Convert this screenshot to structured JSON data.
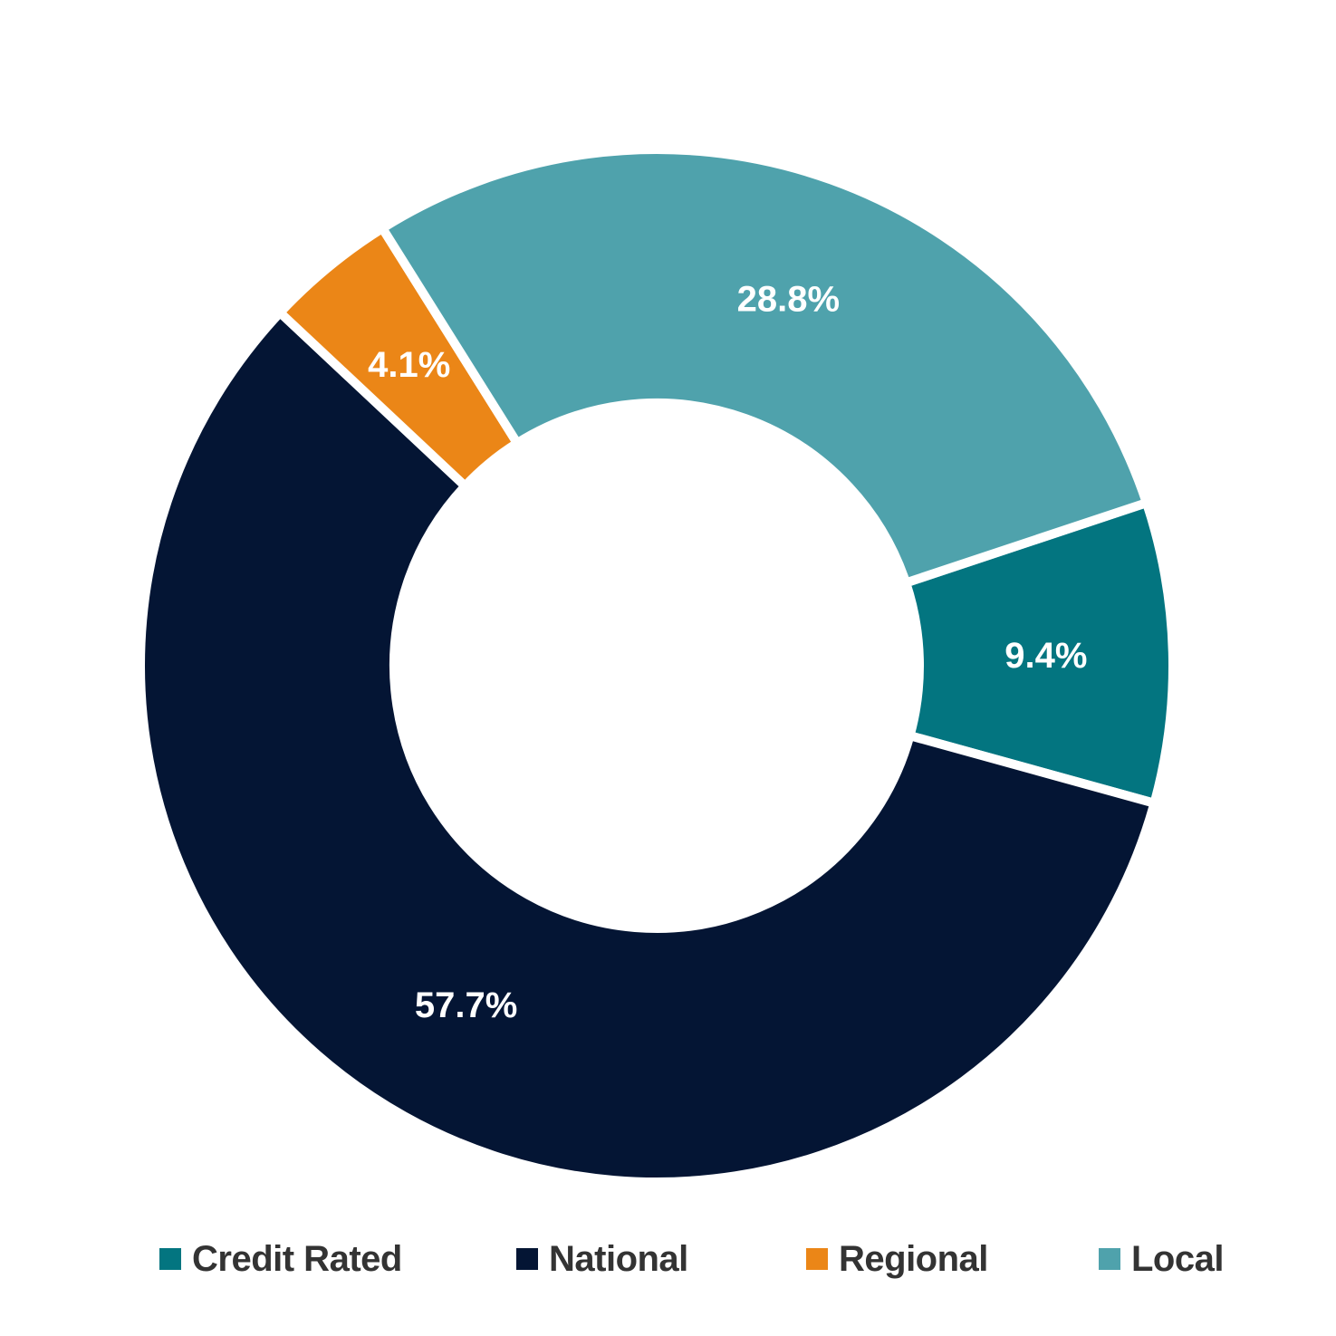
{
  "chart_data": {
    "type": "pie",
    "variant": "donut",
    "categories": [
      "Credit Rated",
      "National",
      "Regional",
      "Local"
    ],
    "values": [
      9.4,
      57.7,
      4.1,
      28.8
    ],
    "value_labels": [
      "9.4%",
      "57.7%",
      "4.1%",
      "28.8%"
    ],
    "colors": [
      "#037580",
      "#041534",
      "#eb8617",
      "#4fa2ac"
    ],
    "legend_position": "bottom",
    "title": ""
  },
  "legend": {
    "items": [
      {
        "label": "Credit Rated",
        "color": "#037580"
      },
      {
        "label": "National",
        "color": "#041534"
      },
      {
        "label": "Regional",
        "color": "#eb8617"
      },
      {
        "label": "Local",
        "color": "#4fa2ac"
      }
    ]
  }
}
